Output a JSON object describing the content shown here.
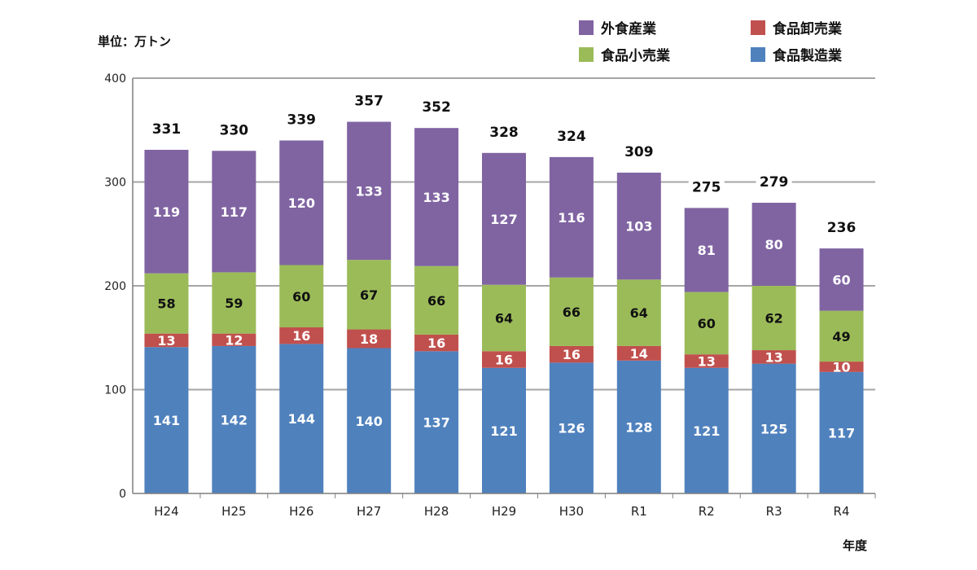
{
  "chart_data": {
    "type": "bar",
    "stacked": true,
    "ylabel": "単位：万トン",
    "xlabel": "年度",
    "ylim": [
      0,
      400
    ],
    "yticks": [
      0,
      100,
      200,
      300,
      400
    ],
    "grid": true,
    "legend_position": "top-right",
    "categories": [
      "H24",
      "H25",
      "H26",
      "H27",
      "H28",
      "H29",
      "H30",
      "R1",
      "R2",
      "R3",
      "R4"
    ],
    "series": [
      {
        "name": "食品製造業",
        "color": "#4f81bd",
        "label_color": "#ffffff",
        "values": [
          141,
          142,
          144,
          140,
          137,
          121,
          126,
          128,
          121,
          125,
          117
        ]
      },
      {
        "name": "食品卸売業",
        "color": "#c0504d",
        "label_color": "#ffffff",
        "values": [
          13,
          12,
          16,
          18,
          16,
          16,
          16,
          14,
          13,
          13,
          10
        ]
      },
      {
        "name": "食品小売業",
        "color": "#9bbb59",
        "label_color": "#111111",
        "values": [
          58,
          59,
          60,
          67,
          66,
          64,
          66,
          64,
          60,
          62,
          49
        ]
      },
      {
        "name": "外食産業",
        "color": "#8064a2",
        "label_color": "#ffffff",
        "values": [
          119,
          117,
          120,
          133,
          133,
          127,
          116,
          103,
          81,
          80,
          60
        ]
      }
    ],
    "totals": [
      331,
      330,
      339,
      357,
      352,
      328,
      324,
      309,
      275,
      279,
      236
    ],
    "legend_order": [
      "外食産業",
      "食品卸売業",
      "食品小売業",
      "食品製造業"
    ]
  }
}
